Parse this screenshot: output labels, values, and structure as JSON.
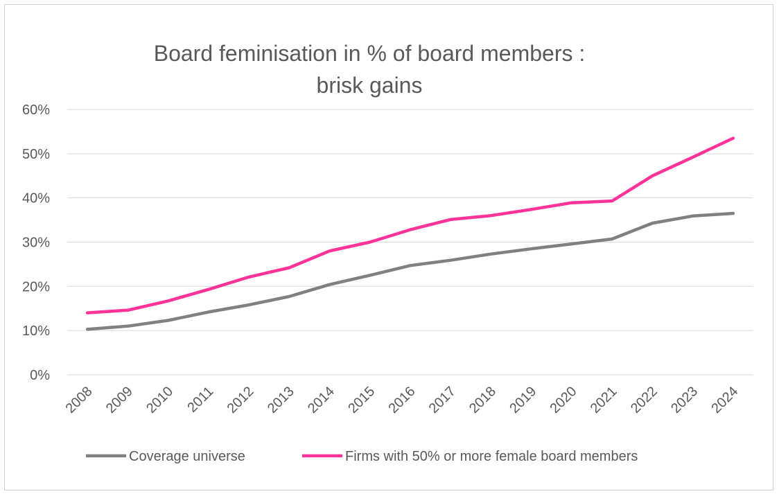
{
  "chart_data": {
    "type": "line",
    "title_lines": [
      "Board feminisation in % of board members :",
      "brisk gains"
    ],
    "categories": [
      "2008",
      "2009",
      "2010",
      "2011",
      "2012",
      "2013",
      "2014",
      "2015",
      "2016",
      "2017",
      "2018",
      "2019",
      "2020",
      "2021",
      "2022",
      "2023",
      "2024"
    ],
    "series": [
      {
        "name": "Coverage universe",
        "color": "#808080",
        "values": [
          10.3,
          11.0,
          12.3,
          14.2,
          15.8,
          17.7,
          20.4,
          22.5,
          24.7,
          25.9,
          27.3,
          28.5,
          29.6,
          30.7,
          34.3,
          35.9,
          36.5
        ]
      },
      {
        "name": "Firms with 50% or more female board members",
        "color": "#ff3399",
        "values": [
          14.0,
          14.6,
          16.7,
          19.3,
          22.1,
          24.2,
          28.0,
          30.0,
          32.8,
          35.1,
          36.0,
          37.4,
          38.9,
          39.3,
          45.0,
          49.2,
          53.5
        ]
      }
    ],
    "ylim": [
      0,
      60
    ],
    "yticks": [
      0,
      10,
      20,
      30,
      40,
      50,
      60
    ],
    "ytick_labels": [
      "0%",
      "10%",
      "20%",
      "30%",
      "40%",
      "50%",
      "60%"
    ],
    "grid": true,
    "legend_position": "bottom"
  }
}
